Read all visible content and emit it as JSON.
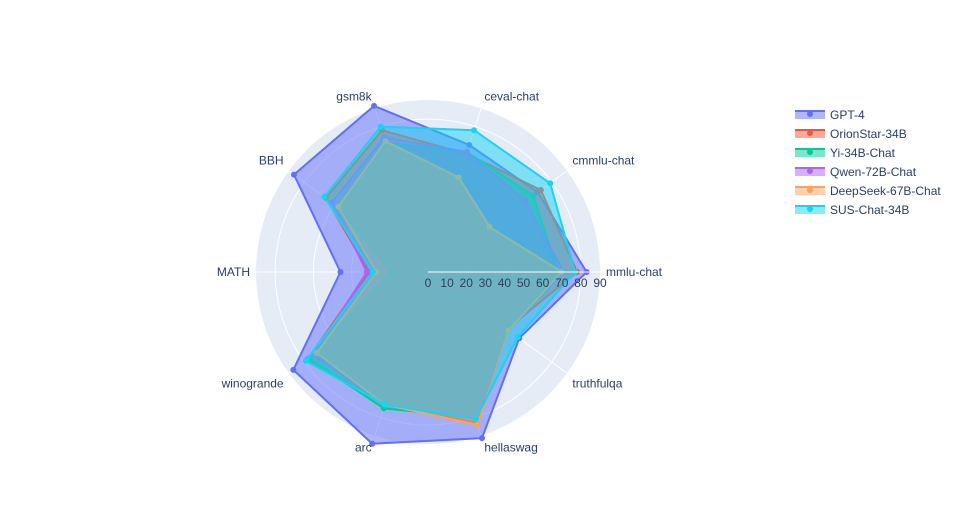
{
  "chart_data": {
    "type": "radar",
    "categories": [
      "mmlu-chat",
      "cmmlu-chat",
      "ceval-chat",
      "gsm8k",
      "BBH",
      "MATH",
      "winogrande",
      "arc",
      "hellaswag",
      "truthfulqa"
    ],
    "radial_ticks": [
      "0",
      "10",
      "20",
      "30",
      "40",
      "50",
      "60",
      "70",
      "80",
      "90"
    ],
    "radial_range": [
      0,
      90
    ],
    "legend_position": "top-right",
    "series": [
      {
        "name": "GPT-4",
        "color": "#636efa",
        "values": [
          83.0,
          71.0,
          69.9,
          91.4,
          86.7,
          45.8,
          87.1,
          94.5,
          91.4,
          59.0
        ]
      },
      {
        "name": "OrionStar-34B",
        "color": "#EF553B",
        "values": [
          78.0,
          73.0,
          65.0,
          78.0,
          66.0,
          31.0,
          78.0,
          73.0,
          83.0,
          51.0
        ]
      },
      {
        "name": "Yi-34B-Chat",
        "color": "#00cc96",
        "values": [
          68.0,
          68.0,
          66.0,
          71.0,
          58.0,
          19.0,
          77.0,
          75.0,
          80.0,
          52.0
        ]
      },
      {
        "name": "Qwen-72B-Chat",
        "color": "#ab63fa",
        "values": [
          71.0,
          63.0,
          66.0,
          74.0,
          62.0,
          32.0,
          74.0,
          73.0,
          80.0,
          52.0
        ]
      },
      {
        "name": "DeepSeek-67B-Chat",
        "color": "#FFA15A",
        "values": [
          70.0,
          40.0,
          52.0,
          72.0,
          58.0,
          27.0,
          72.0,
          73.0,
          84.0,
          52.0
        ]
      },
      {
        "name": "SUS-Chat-34B",
        "color": "#19d3f3",
        "values": [
          77.0,
          79.0,
          78.0,
          80.0,
          67.0,
          29.0,
          79.0,
          73.0,
          81.0,
          58.0
        ]
      }
    ]
  }
}
